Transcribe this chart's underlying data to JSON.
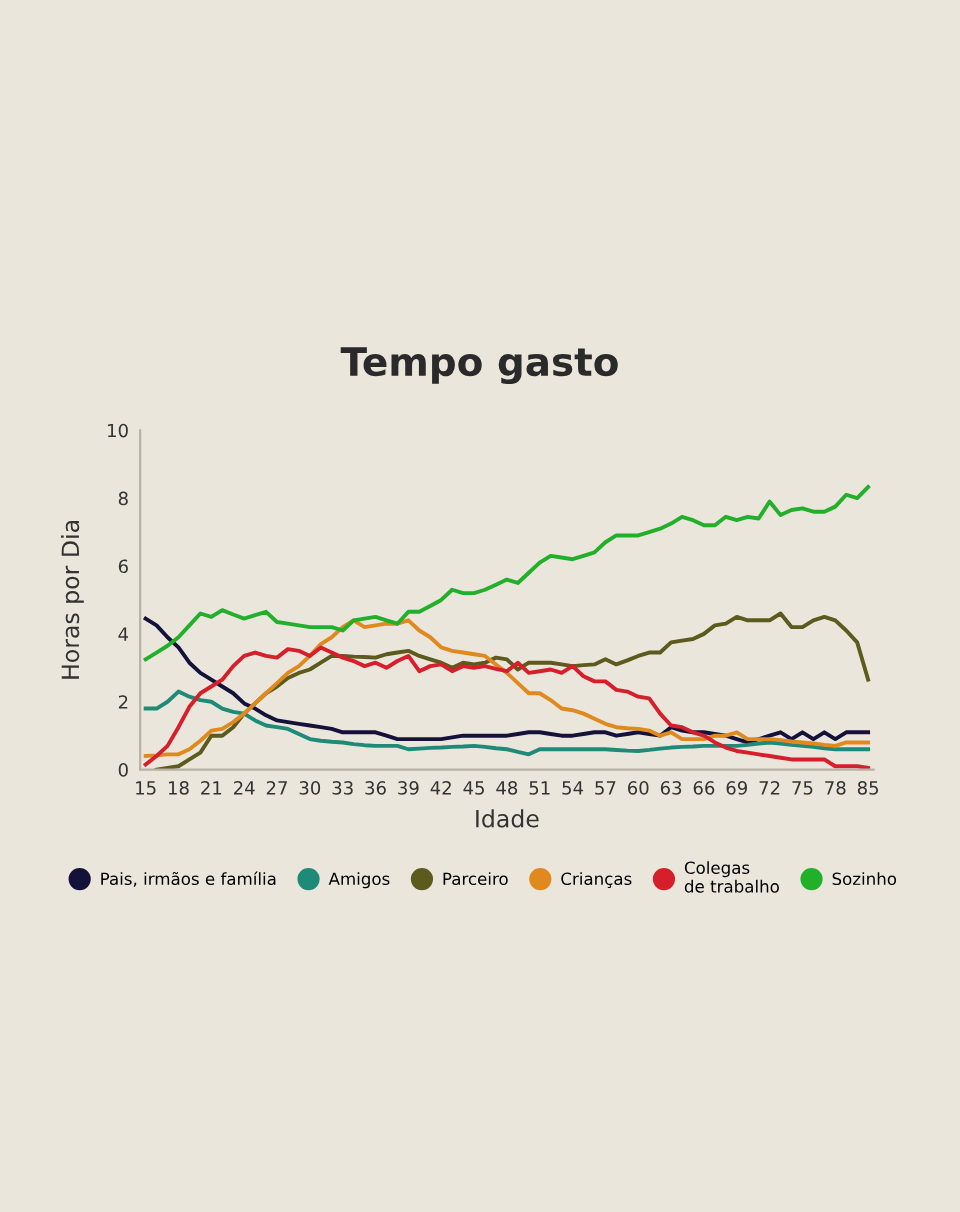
{
  "chart_data": {
    "type": "line",
    "title": "Tempo gasto",
    "xlabel": "Idade",
    "ylabel": "Horas por Dia",
    "categories": [
      "15",
      null,
      null,
      "18",
      null,
      null,
      "21",
      null,
      null,
      "24",
      null,
      null,
      "27",
      null,
      null,
      "30",
      null,
      null,
      "33",
      null,
      null,
      "36",
      null,
      null,
      "39",
      null,
      null,
      "42",
      null,
      null,
      "45",
      null,
      null,
      "48",
      null,
      null,
      "51",
      null,
      null,
      "54",
      null,
      null,
      "57",
      null,
      null,
      "60",
      null,
      null,
      "63",
      null,
      null,
      "66",
      null,
      null,
      "69",
      null,
      null,
      "72",
      null,
      null,
      "75",
      null,
      null,
      "78",
      null,
      null,
      "85"
    ],
    "ylim": [
      0,
      10
    ],
    "yticks": [
      0,
      2,
      4,
      6,
      8,
      10
    ],
    "legend": "bottom",
    "marker": "none",
    "line_style": "solid",
    "series": [
      {
        "name": "Pais, irmãos e família",
        "color": "#14123a",
        "values": [
          4.45,
          4.25,
          3.9,
          3.6,
          3.15,
          2.85,
          2.65,
          2.45,
          2.25,
          1.95,
          1.8,
          1.6,
          1.45,
          1.4,
          1.35,
          1.3,
          1.25,
          1.2,
          1.1,
          1.1,
          1.1,
          1.1,
          1.0,
          0.9,
          0.9,
          0.9,
          0.9,
          0.9,
          0.95,
          1.0,
          1.0,
          1.0,
          1.0,
          1.0,
          1.05,
          1.1,
          1.1,
          1.05,
          1.0,
          1.0,
          1.05,
          1.1,
          1.1,
          1.0,
          1.05,
          1.1,
          1.05,
          1.0,
          1.25,
          1.15,
          1.1,
          1.1,
          1.05,
          1.0,
          0.9,
          0.8,
          0.9,
          1.0,
          1.1,
          0.9,
          1.1,
          0.9,
          1.1,
          0.9,
          1.1,
          1.1,
          1.1
        ]
      },
      {
        "name": "Amigos",
        "color": "#1e8a78",
        "values": [
          1.8,
          1.8,
          2.0,
          2.3,
          2.15,
          2.05,
          2.0,
          1.8,
          1.7,
          1.65,
          1.45,
          1.3,
          1.25,
          1.2,
          1.05,
          0.9,
          0.85,
          0.82,
          0.8,
          0.75,
          0.72,
          0.7,
          0.7,
          0.7,
          0.6,
          0.62,
          0.64,
          0.65,
          0.67,
          0.68,
          0.7,
          0.67,
          0.63,
          0.6,
          0.52,
          0.45,
          0.6,
          0.6,
          0.6,
          0.6,
          0.6,
          0.6,
          0.6,
          0.58,
          0.56,
          0.55,
          0.58,
          0.62,
          0.65,
          0.67,
          0.68,
          0.7,
          0.7,
          0.7,
          0.7,
          0.73,
          0.77,
          0.8,
          0.77,
          0.73,
          0.7,
          0.67,
          0.63,
          0.6,
          0.6,
          0.6,
          0.6
        ]
      },
      {
        "name": "Parceiro",
        "color": "#5c5a1c",
        "values": [
          null,
          0,
          0.05,
          0.1,
          0.3,
          0.5,
          1.0,
          1.0,
          1.25,
          1.65,
          1.95,
          2.25,
          2.45,
          2.7,
          2.85,
          2.95,
          3.15,
          3.35,
          3.35,
          3.33,
          3.32,
          3.3,
          3.4,
          3.45,
          3.5,
          3.35,
          3.25,
          3.15,
          3.0,
          3.15,
          3.1,
          3.15,
          3.3,
          3.25,
          2.95,
          3.15,
          3.15,
          3.15,
          3.1,
          3.05,
          3.08,
          3.1,
          3.25,
          3.1,
          3.22,
          3.35,
          3.45,
          3.45,
          3.75,
          3.8,
          3.85,
          4.0,
          4.25,
          4.3,
          4.5,
          4.4,
          4.4,
          4.4,
          4.6,
          4.2,
          4.2,
          4.4,
          4.5,
          4.4,
          4.1,
          3.75,
          2.65
        ]
      },
      {
        "name": "Crianças",
        "color": "#e0891e",
        "values": [
          0.4,
          0.42,
          0.45,
          0.45,
          0.6,
          0.85,
          1.15,
          1.2,
          1.4,
          1.65,
          1.95,
          2.25,
          2.55,
          2.85,
          3.05,
          3.35,
          3.7,
          3.9,
          4.2,
          4.4,
          4.2,
          4.25,
          4.3,
          4.3,
          4.4,
          4.1,
          3.9,
          3.6,
          3.5,
          3.45,
          3.4,
          3.35,
          3.1,
          2.85,
          2.55,
          2.25,
          2.25,
          2.05,
          1.8,
          1.75,
          1.65,
          1.5,
          1.35,
          1.25,
          1.22,
          1.2,
          1.15,
          1.0,
          1.1,
          0.9,
          0.9,
          0.9,
          1.0,
          1.0,
          1.1,
          0.9,
          0.9,
          0.9,
          0.87,
          0.83,
          0.8,
          0.77,
          0.73,
          0.7,
          0.8,
          0.8,
          0.8
        ]
      },
      {
        "name": "Colegas\nde trabalho",
        "color": "#d61f2a",
        "values": [
          0.15,
          0.4,
          0.7,
          1.25,
          1.85,
          2.25,
          2.45,
          2.65,
          3.05,
          3.35,
          3.45,
          3.35,
          3.3,
          3.55,
          3.5,
          3.35,
          3.6,
          3.45,
          3.3,
          3.2,
          3.05,
          3.15,
          3.0,
          3.2,
          3.35,
          2.9,
          3.05,
          3.1,
          2.9,
          3.05,
          3.0,
          3.05,
          2.97,
          2.9,
          3.15,
          2.85,
          2.9,
          2.95,
          2.85,
          3.05,
          2.75,
          2.6,
          2.6,
          2.35,
          2.3,
          2.15,
          2.1,
          1.65,
          1.3,
          1.25,
          1.1,
          1.0,
          0.8,
          0.65,
          0.55,
          0.5,
          0.45,
          0.4,
          0.35,
          0.3,
          0.3,
          0.3,
          0.3,
          0.1,
          0.1,
          0.1,
          0.05
        ]
      },
      {
        "name": "Sozinho",
        "color": "#22b02a",
        "values": [
          3.25,
          3.45,
          3.65,
          3.9,
          4.25,
          4.6,
          4.5,
          4.7,
          4.57,
          4.45,
          4.55,
          4.65,
          4.35,
          4.3,
          4.25,
          4.2,
          4.2,
          4.2,
          4.1,
          4.4,
          4.45,
          4.5,
          4.4,
          4.3,
          4.65,
          4.65,
          4.82,
          5.0,
          5.3,
          5.2,
          5.2,
          5.3,
          5.45,
          5.6,
          5.5,
          5.8,
          6.1,
          6.3,
          6.25,
          6.2,
          6.3,
          6.4,
          6.7,
          6.9,
          6.9,
          6.9,
          7.0,
          7.1,
          7.25,
          7.45,
          7.35,
          7.2,
          7.2,
          7.45,
          7.35,
          7.45,
          7.4,
          7.9,
          7.5,
          7.65,
          7.7,
          7.6,
          7.6,
          7.75,
          8.1,
          8.0,
          8.33
        ]
      }
    ]
  }
}
